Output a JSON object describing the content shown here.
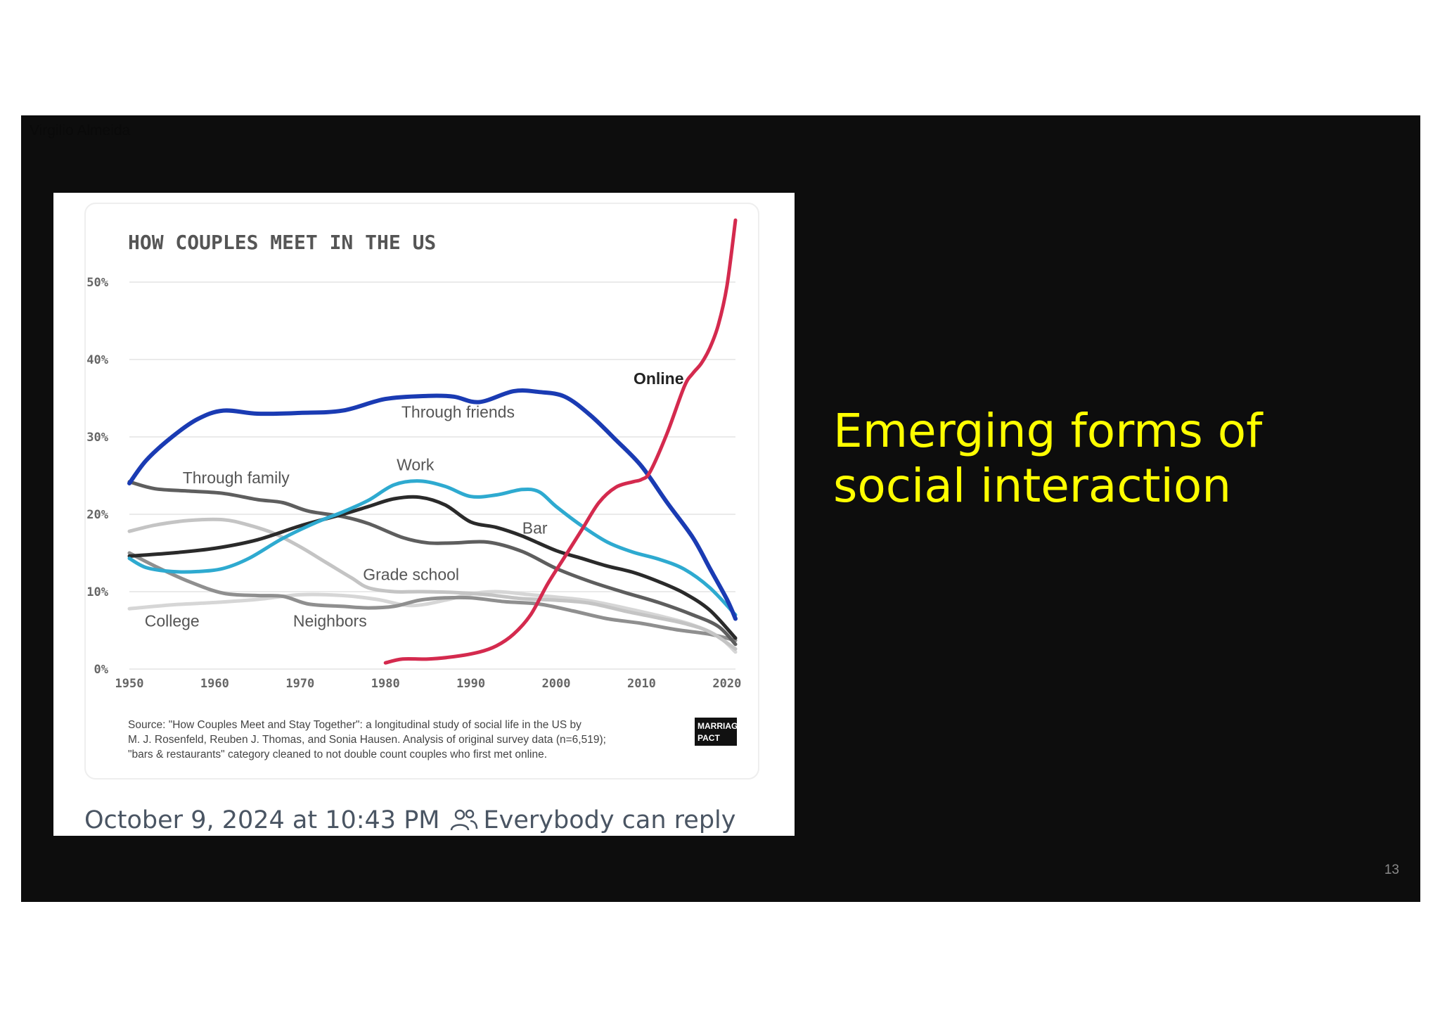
{
  "slide": {
    "author": "Virgilio Almeida",
    "headline": "Emerging forms of social interaction",
    "page_number": "13",
    "accent_color": "#ffff00",
    "background_color": "#0d0d0d"
  },
  "post": {
    "timestamp": "October 9, 2024 at 10:43 PM",
    "reply_setting": "Everybody can reply",
    "reply_icon": "people-icon"
  },
  "chart_data": {
    "type": "line",
    "title": "HOW COUPLES MEET IN THE US",
    "xlabel": "",
    "ylabel": "",
    "xlim": [
      1950,
      2021
    ],
    "ylim": [
      0,
      50
    ],
    "x_ticks": [
      "1950",
      "1960",
      "1970",
      "1980",
      "1990",
      "2000",
      "2010",
      "2020"
    ],
    "y_ticks": [
      "0%",
      "10%",
      "20%",
      "30%",
      "40%",
      "50%"
    ],
    "grid": true,
    "legend": "inline labels",
    "series": [
      {
        "name": "Through friends",
        "color": "#1a3bb3",
        "width": 6,
        "label_x": 1988.5,
        "label_y": 32.5,
        "points": [
          [
            1950,
            24
          ],
          [
            1952,
            27
          ],
          [
            1955,
            30
          ],
          [
            1958,
            32.3
          ],
          [
            1961,
            33.4
          ],
          [
            1965,
            33.0
          ],
          [
            1970,
            33.1
          ],
          [
            1975,
            33.4
          ],
          [
            1980,
            34.9
          ],
          [
            1985,
            35.3
          ],
          [
            1988,
            35.2
          ],
          [
            1991,
            34.5
          ],
          [
            1995,
            35.9
          ],
          [
            1998,
            35.8
          ],
          [
            2001,
            35.2
          ],
          [
            2004,
            32.8
          ],
          [
            2007,
            29.6
          ],
          [
            2010,
            26.2
          ],
          [
            2013,
            21.5
          ],
          [
            2016,
            17.0
          ],
          [
            2018,
            13.0
          ],
          [
            2020,
            9.0
          ],
          [
            2021,
            6.5
          ]
        ]
      },
      {
        "name": "Through family",
        "color": "#5e5e5e",
        "width": 5,
        "label_x": 1962.5,
        "label_y": 24.0,
        "points": [
          [
            1950,
            24.2
          ],
          [
            1953,
            23.3
          ],
          [
            1957,
            23.0
          ],
          [
            1961,
            22.7
          ],
          [
            1965,
            21.9
          ],
          [
            1968,
            21.5
          ],
          [
            1971,
            20.4
          ],
          [
            1975,
            19.7
          ],
          [
            1978,
            18.8
          ],
          [
            1982,
            17.0
          ],
          [
            1985,
            16.3
          ],
          [
            1988,
            16.3
          ],
          [
            1992,
            16.4
          ],
          [
            1996,
            15.2
          ],
          [
            2000,
            13.0
          ],
          [
            2004,
            11.3
          ],
          [
            2008,
            9.9
          ],
          [
            2012,
            8.6
          ],
          [
            2016,
            7.0
          ],
          [
            2019,
            5.5
          ],
          [
            2021,
            3.2
          ]
        ]
      },
      {
        "name": "Work",
        "color": "#2eaad0",
        "width": 5,
        "label_x": 1983.5,
        "label_y": 25.7,
        "points": [
          [
            1950,
            14.3
          ],
          [
            1952,
            13.1
          ],
          [
            1955,
            12.6
          ],
          [
            1958,
            12.6
          ],
          [
            1961,
            13.0
          ],
          [
            1964,
            14.3
          ],
          [
            1968,
            16.9
          ],
          [
            1972,
            19.0
          ],
          [
            1975,
            20.3
          ],
          [
            1978,
            21.8
          ],
          [
            1981,
            23.8
          ],
          [
            1984,
            24.3
          ],
          [
            1987,
            23.6
          ],
          [
            1990,
            22.3
          ],
          [
            1993,
            22.5
          ],
          [
            1996,
            23.2
          ],
          [
            1998,
            22.9
          ],
          [
            2000,
            21.0
          ],
          [
            2003,
            18.5
          ],
          [
            2006,
            16.4
          ],
          [
            2009,
            15.1
          ],
          [
            2012,
            14.2
          ],
          [
            2015,
            12.9
          ],
          [
            2018,
            10.5
          ],
          [
            2021,
            7.0
          ]
        ]
      },
      {
        "name": "Bar",
        "color": "#2a2a2a",
        "width": 5,
        "label_x": 1997.5,
        "label_y": 17.5,
        "points": [
          [
            1950,
            14.6
          ],
          [
            1955,
            15.0
          ],
          [
            1960,
            15.6
          ],
          [
            1965,
            16.7
          ],
          [
            1970,
            18.5
          ],
          [
            1975,
            20.0
          ],
          [
            1978,
            21.0
          ],
          [
            1981,
            22.0
          ],
          [
            1984,
            22.2
          ],
          [
            1987,
            21.2
          ],
          [
            1990,
            19.0
          ],
          [
            1993,
            18.3
          ],
          [
            1996,
            17.2
          ],
          [
            2000,
            15.3
          ],
          [
            2003,
            14.3
          ],
          [
            2006,
            13.3
          ],
          [
            2009,
            12.5
          ],
          [
            2012,
            11.3
          ],
          [
            2015,
            9.8
          ],
          [
            2018,
            7.6
          ],
          [
            2021,
            4.0
          ]
        ]
      },
      {
        "name": "Online",
        "color": "#d42a4e",
        "width": 5,
        "label_x": 2012.0,
        "label_y": 36.8,
        "points": [
          [
            1980,
            0.8
          ],
          [
            1982,
            1.3
          ],
          [
            1985,
            1.3
          ],
          [
            1988,
            1.6
          ],
          [
            1991,
            2.2
          ],
          [
            1993,
            3.0
          ],
          [
            1995,
            4.5
          ],
          [
            1997,
            7.0
          ],
          [
            1999,
            11.0
          ],
          [
            2001,
            14.5
          ],
          [
            2003,
            18.0
          ],
          [
            2005,
            21.5
          ],
          [
            2007,
            23.5
          ],
          [
            2009,
            24.2
          ],
          [
            2010,
            24.5
          ],
          [
            2011,
            25.5
          ],
          [
            2013,
            30.5
          ],
          [
            2015,
            36.5
          ],
          [
            2016,
            38.2
          ],
          [
            2017,
            39.5
          ],
          [
            2018,
            41.5
          ],
          [
            2019,
            44.5
          ],
          [
            2020,
            49.5
          ],
          [
            2021,
            58.0
          ]
        ]
      },
      {
        "name": "Grade school",
        "color": "#c4c4c4",
        "width": 5,
        "label_x": 1983.0,
        "label_y": 11.5,
        "points": [
          [
            1950,
            17.8
          ],
          [
            1953,
            18.6
          ],
          [
            1957,
            19.2
          ],
          [
            1961,
            19.3
          ],
          [
            1964,
            18.6
          ],
          [
            1967,
            17.5
          ],
          [
            1970,
            15.8
          ],
          [
            1973,
            13.8
          ],
          [
            1976,
            11.8
          ],
          [
            1978,
            10.5
          ],
          [
            1981,
            10.0
          ],
          [
            1984,
            10.0
          ],
          [
            1988,
            9.9
          ],
          [
            1992,
            9.6
          ],
          [
            1996,
            9.1
          ],
          [
            2000,
            8.9
          ],
          [
            2004,
            8.5
          ],
          [
            2008,
            7.5
          ],
          [
            2012,
            6.6
          ],
          [
            2015,
            5.9
          ],
          [
            2018,
            4.8
          ],
          [
            2021,
            2.6
          ]
        ]
      },
      {
        "name": "College",
        "color": "#d6d6d6",
        "width": 5,
        "label_x": 1955.0,
        "label_y": 5.5,
        "points": [
          [
            1950,
            7.8
          ],
          [
            1955,
            8.3
          ],
          [
            1960,
            8.6
          ],
          [
            1965,
            9.0
          ],
          [
            1970,
            9.6
          ],
          [
            1975,
            9.5
          ],
          [
            1979,
            9.0
          ],
          [
            1983,
            8.2
          ],
          [
            1987,
            8.9
          ],
          [
            1990,
            9.7
          ],
          [
            1993,
            10.0
          ],
          [
            1997,
            9.6
          ],
          [
            2000,
            9.3
          ],
          [
            2004,
            8.8
          ],
          [
            2008,
            7.9
          ],
          [
            2012,
            6.9
          ],
          [
            2016,
            5.7
          ],
          [
            2019,
            4.2
          ],
          [
            2021,
            2.2
          ]
        ]
      },
      {
        "name": "Neighbors",
        "color": "#8f8f8f",
        "width": 5,
        "label_x": 1973.5,
        "label_y": 5.5,
        "points": [
          [
            1950,
            15.0
          ],
          [
            1953,
            13.3
          ],
          [
            1957,
            11.3
          ],
          [
            1961,
            9.8
          ],
          [
            1965,
            9.5
          ],
          [
            1968,
            9.4
          ],
          [
            1971,
            8.4
          ],
          [
            1975,
            8.1
          ],
          [
            1978,
            7.9
          ],
          [
            1981,
            8.1
          ],
          [
            1984,
            8.9
          ],
          [
            1987,
            9.2
          ],
          [
            1990,
            9.2
          ],
          [
            1994,
            8.7
          ],
          [
            1998,
            8.4
          ],
          [
            2002,
            7.5
          ],
          [
            2006,
            6.5
          ],
          [
            2010,
            5.9
          ],
          [
            2014,
            5.1
          ],
          [
            2018,
            4.5
          ],
          [
            2021,
            3.7
          ]
        ]
      }
    ],
    "source": [
      "Source: \"How Couples Meet and Stay Together\": a longitudinal study of social life in the US by",
      "M. J. Rosenfeld, Reuben J. Thomas, and Sonia Hausen. Analysis of original survey data (n=6,519);",
      "\"bars & restaurants\" category cleaned to not double count couples who first met online."
    ],
    "logo": [
      "MARRIAGE",
      "PACT"
    ]
  }
}
